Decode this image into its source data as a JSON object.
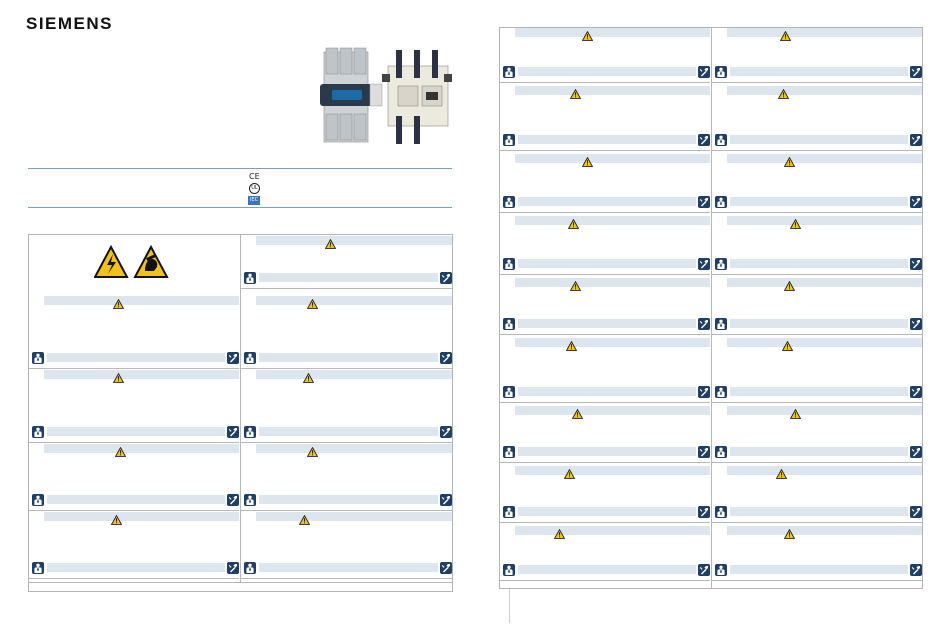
{
  "brand": {
    "logo_text": "SIEMENS"
  },
  "certifications": {
    "ce": "CE",
    "ul": "UL",
    "iec": "IEC"
  },
  "colors": {
    "accent_line": "#7a9fbf",
    "bar_fill": "#dde6ee",
    "warning_yellow": "#f2c21b",
    "icon_blue": "#1e3f66"
  },
  "icons": {
    "warning": "warning-triangle-icon",
    "person": "electrician-person-icon",
    "tool": "screwdriver-tool-icon",
    "hazard_voltage": "high-voltage-hazard-icon",
    "hazard_hand": "hand-crush-hazard-icon"
  }
}
